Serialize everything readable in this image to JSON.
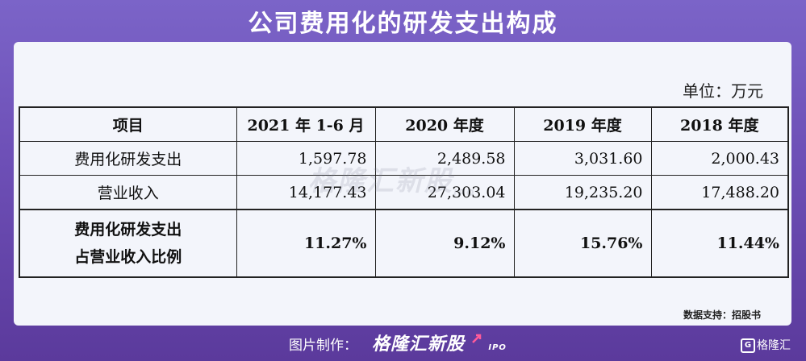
{
  "header": {
    "title": "公司费用化的研发支出构成"
  },
  "document": {
    "unit_label": "单位：万元",
    "table": {
      "headers": [
        "项目",
        "2021 年 1-6 月",
        "2020 年度",
        "2019 年度",
        "2018 年度"
      ],
      "rows": [
        {
          "label": "费用化研发支出",
          "values": [
            "1,597.78",
            "2,489.58",
            "3,031.60",
            "2,000.43"
          ]
        },
        {
          "label": "营业收入",
          "values": [
            "14,177.43",
            "27,303.04",
            "19,235.20",
            "17,488.20"
          ]
        },
        {
          "label_line1": "费用化研发支出",
          "label_line2": "占营业收入比例",
          "values": [
            "11.27%",
            "9.12%",
            "15.76%",
            "11.44%"
          ]
        }
      ]
    },
    "watermark": {
      "text": "格隆汇新股",
      "suffix": "IPO"
    },
    "source": "数据支持：招股书"
  },
  "footer": {
    "credit_label": "图片制作：",
    "credit_logo": "格隆汇新股",
    "credit_logo_suffix": "IPO",
    "brand_icon": "G",
    "brand_name": "格隆汇"
  },
  "colors": {
    "background": "#6d4fb6",
    "card": "#f3f5fb",
    "text": "#111111"
  }
}
